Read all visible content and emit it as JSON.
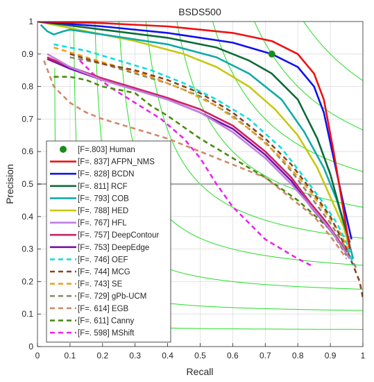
{
  "chart_data": {
    "type": "line",
    "title": "BSDS500",
    "xlabel": "Recall",
    "ylabel": "Precision",
    "xlim": [
      0,
      1
    ],
    "ylim": [
      0,
      1
    ],
    "xticks": [
      "0",
      "0.1",
      "0.2",
      "0.3",
      "0.4",
      "0.5",
      "0.6",
      "0.7",
      "0.8",
      "0.9",
      "1"
    ],
    "yticks": [
      "0",
      "0.1",
      "0.2",
      "0.3",
      "0.4",
      "0.5",
      "0.6",
      "0.7",
      "0.8",
      "0.9",
      "1"
    ],
    "grid": true,
    "legend_position": "lower-left",
    "reference_line": {
      "y": 0.5,
      "color": "#b0b0b0"
    },
    "iso_f_color": "#22dd22",
    "iso_f_levels": [
      0.1,
      0.2,
      0.3,
      0.4,
      0.5,
      0.6,
      0.7,
      0.8,
      0.9
    ],
    "human": {
      "label": "[F=.803] Human",
      "x": 0.72,
      "y": 0.9,
      "color": "#1a8c1a"
    },
    "series": [
      {
        "name": "[F=. 837] AFPN_NMS",
        "color": "#ee1111",
        "dash": false,
        "x": [
          0,
          0.2,
          0.4,
          0.6,
          0.72,
          0.8,
          0.85,
          0.88,
          0.91,
          0.94,
          0.96
        ],
        "y": [
          1,
          0.995,
          0.985,
          0.965,
          0.94,
          0.9,
          0.84,
          0.76,
          0.6,
          0.42,
          0.3
        ]
      },
      {
        "name": "[F=. 828] BCDN",
        "color": "#1111ee",
        "dash": false,
        "x": [
          0,
          0.2,
          0.4,
          0.6,
          0.72,
          0.8,
          0.85,
          0.88,
          0.91,
          0.94,
          0.965
        ],
        "y": [
          1,
          0.985,
          0.965,
          0.935,
          0.9,
          0.86,
          0.8,
          0.72,
          0.58,
          0.44,
          0.33
        ]
      },
      {
        "name": "[F=. 811] RCF",
        "color": "#0e6b3a",
        "dash": false,
        "x": [
          0,
          0.2,
          0.4,
          0.55,
          0.65,
          0.72,
          0.8,
          0.86,
          0.9,
          0.93,
          0.96
        ],
        "y": [
          1,
          0.975,
          0.95,
          0.92,
          0.88,
          0.84,
          0.76,
          0.64,
          0.53,
          0.42,
          0.32
        ]
      },
      {
        "name": "[F=. 793] COB",
        "color": "#11aaaa",
        "dash": false,
        "x": [
          0.01,
          0.03,
          0.05,
          0.08,
          0.1,
          0.2,
          0.4,
          0.55,
          0.65,
          0.75,
          0.82,
          0.88,
          0.92,
          0.95,
          0.97
        ],
        "y": [
          0.99,
          0.97,
          0.96,
          0.97,
          0.975,
          0.96,
          0.93,
          0.89,
          0.84,
          0.76,
          0.66,
          0.55,
          0.45,
          0.35,
          0.27
        ]
      },
      {
        "name": "[F=. 788] HED",
        "color": "#c8c811",
        "dash": false,
        "x": [
          0,
          0.15,
          0.3,
          0.45,
          0.55,
          0.65,
          0.73,
          0.8,
          0.86,
          0.9,
          0.94,
          0.96
        ],
        "y": [
          1,
          0.97,
          0.94,
          0.9,
          0.86,
          0.8,
          0.73,
          0.65,
          0.55,
          0.46,
          0.37,
          0.3
        ]
      },
      {
        "name": "[F=. 767] HFL",
        "color": "#c080e0",
        "dash": false,
        "x": [
          0.03,
          0.1,
          0.2,
          0.3,
          0.4,
          0.5,
          0.6,
          0.7,
          0.78,
          0.85,
          0.9,
          0.94,
          0.96
        ],
        "y": [
          0.9,
          0.86,
          0.82,
          0.79,
          0.76,
          0.72,
          0.66,
          0.58,
          0.5,
          0.42,
          0.36,
          0.3,
          0.27
        ]
      },
      {
        "name": "[F=. 757] DeepContour",
        "color": "#cc2266",
        "dash": false,
        "x": [
          0.03,
          0.1,
          0.2,
          0.3,
          0.4,
          0.5,
          0.6,
          0.7,
          0.78,
          0.84,
          0.89,
          0.93,
          0.95
        ],
        "y": [
          0.89,
          0.86,
          0.825,
          0.795,
          0.765,
          0.73,
          0.68,
          0.6,
          0.52,
          0.44,
          0.38,
          0.32,
          0.29
        ]
      },
      {
        "name": "[F=. 753] DeepEdge",
        "color": "#7711aa",
        "dash": false,
        "x": [
          0.03,
          0.1,
          0.2,
          0.3,
          0.4,
          0.5,
          0.6,
          0.7,
          0.78,
          0.84,
          0.89,
          0.93
        ],
        "y": [
          0.885,
          0.855,
          0.82,
          0.79,
          0.76,
          0.72,
          0.67,
          0.59,
          0.51,
          0.43,
          0.37,
          0.32
        ]
      },
      {
        "name": "[F=. 746] OEF",
        "color": "#11dddd",
        "dash": true,
        "x": [
          0.05,
          0.15,
          0.25,
          0.35,
          0.45,
          0.55,
          0.65,
          0.75,
          0.82,
          0.88,
          0.92,
          0.95,
          0.97
        ],
        "y": [
          0.93,
          0.91,
          0.88,
          0.85,
          0.81,
          0.76,
          0.7,
          0.61,
          0.52,
          0.44,
          0.38,
          0.32,
          0.25
        ]
      },
      {
        "name": "[F=. 744] MCG",
        "color": "#884422",
        "dash": true,
        "x": [
          0.1,
          0.2,
          0.3,
          0.4,
          0.5,
          0.6,
          0.7,
          0.78,
          0.85,
          0.9,
          0.95,
          0.99,
          1.0
        ],
        "y": [
          0.9,
          0.87,
          0.85,
          0.82,
          0.78,
          0.72,
          0.64,
          0.56,
          0.47,
          0.4,
          0.3,
          0.2,
          0.15
        ]
      },
      {
        "name": "[F=. 743] SE",
        "color": "#f0a020",
        "dash": true,
        "x": [
          0.05,
          0.15,
          0.25,
          0.35,
          0.45,
          0.55,
          0.65,
          0.75,
          0.82,
          0.88,
          0.93,
          0.96
        ],
        "y": [
          0.92,
          0.89,
          0.86,
          0.83,
          0.79,
          0.74,
          0.67,
          0.58,
          0.5,
          0.42,
          0.35,
          0.29
        ]
      },
      {
        "name": "[F=. 729] gPb-UCM",
        "color": "#8a8a6a",
        "dash": true,
        "x": [
          0.1,
          0.2,
          0.3,
          0.4,
          0.5,
          0.6,
          0.7,
          0.78,
          0.84,
          0.9,
          0.95,
          0.98
        ],
        "y": [
          0.89,
          0.87,
          0.84,
          0.81,
          0.77,
          0.71,
          0.63,
          0.54,
          0.46,
          0.38,
          0.3,
          0.24
        ]
      },
      {
        "name": "[F=. 614] EGB",
        "color": "#d08a6a",
        "dash": true,
        "x": [
          0.02,
          0.05,
          0.1,
          0.15,
          0.2,
          0.3,
          0.4,
          0.5,
          0.6,
          0.7,
          0.75,
          0.8,
          0.85,
          0.9,
          0.95
        ],
        "y": [
          0.88,
          0.8,
          0.75,
          0.72,
          0.7,
          0.67,
          0.64,
          0.6,
          0.56,
          0.52,
          0.48,
          0.44,
          0.4,
          0.34,
          0.27
        ]
      },
      {
        "name": "[F=. 611] Canny",
        "color": "#4a8a11",
        "dash": true,
        "x": [
          0.05,
          0.1,
          0.15,
          0.2,
          0.3,
          0.35,
          0.4,
          0.5,
          0.6,
          0.7,
          0.8,
          0.9,
          0.95
        ],
        "y": [
          0.83,
          0.83,
          0.82,
          0.8,
          0.78,
          0.74,
          0.71,
          0.64,
          0.58,
          0.52,
          0.45,
          0.36,
          0.28
        ]
      },
      {
        "name": "[F=. 598] MShift",
        "color": "#ee22ee",
        "dash": true,
        "x": [
          0.13,
          0.17,
          0.22,
          0.3,
          0.38,
          0.45,
          0.5,
          0.55,
          0.6,
          0.65,
          0.7,
          0.75,
          0.8,
          0.84
        ],
        "y": [
          0.88,
          0.84,
          0.8,
          0.75,
          0.7,
          0.64,
          0.58,
          0.5,
          0.43,
          0.38,
          0.33,
          0.3,
          0.27,
          0.25
        ]
      }
    ]
  }
}
